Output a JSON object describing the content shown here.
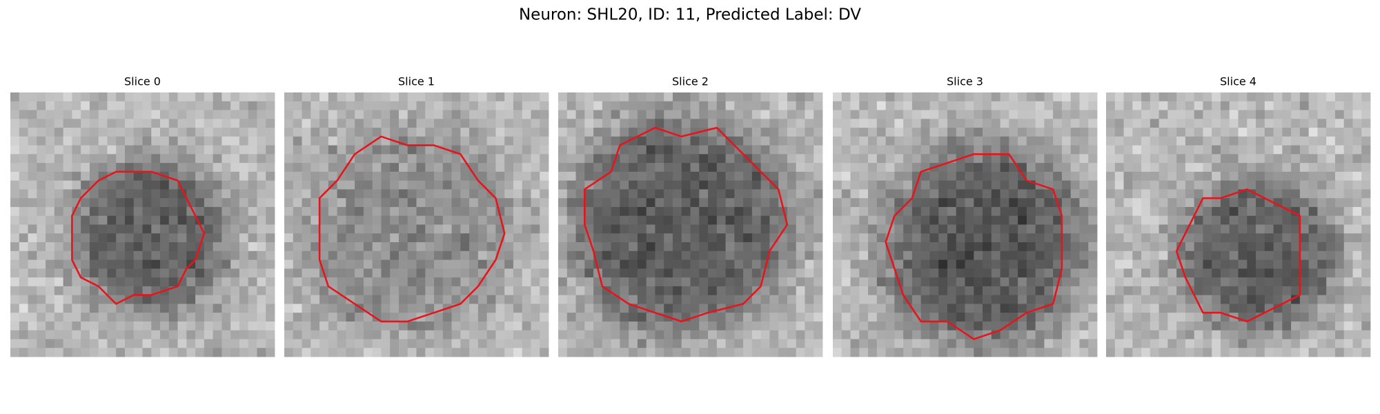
{
  "title": "Neuron: SHL20, ID: 11, Predicted Label: DV",
  "panels": [
    {
      "title": "Slice 0"
    },
    {
      "title": "Slice 1"
    },
    {
      "title": "Slice 2"
    },
    {
      "title": "Slice 3"
    },
    {
      "title": "Slice 4"
    }
  ]
}
